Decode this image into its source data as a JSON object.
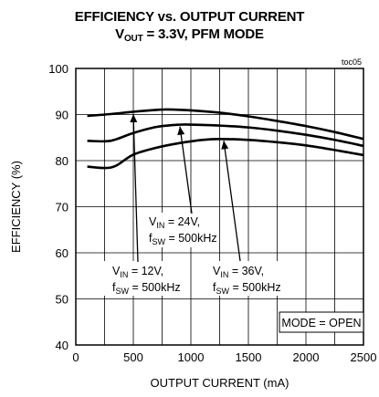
{
  "chart_data": {
    "type": "line",
    "title_line1": "EFFICIENCY vs. OUTPUT CURRENT",
    "title_line2_prefix": "V",
    "title_line2_sub": "OUT",
    "title_line2_suffix": " = 3.3V, PFM MODE",
    "corner_label": "toc05",
    "xlabel": "OUTPUT CURRENT (mA)",
    "ylabel": "EFFICIENCY (%)",
    "xlim": [
      0,
      2500
    ],
    "ylim": [
      40,
      100
    ],
    "x_ticks": [
      0,
      500,
      1000,
      1500,
      2000,
      2500
    ],
    "y_ticks": [
      40,
      50,
      60,
      70,
      80,
      90,
      100
    ],
    "x_grid_step": 250,
    "grid": true,
    "series": [
      {
        "name": "12V",
        "x": [
          100,
          300,
          500,
          700,
          800,
          1000,
          1250,
          1500,
          1750,
          2000,
          2250,
          2500
        ],
        "values": [
          89.7,
          90.1,
          90.6,
          91.0,
          91.1,
          90.9,
          90.4,
          89.6,
          88.6,
          87.5,
          86.2,
          84.7
        ]
      },
      {
        "name": "24V",
        "x": [
          100,
          300,
          500,
          700,
          900,
          1000,
          1250,
          1500,
          1750,
          2000,
          2250,
          2500
        ],
        "values": [
          84.3,
          84.3,
          86.0,
          87.3,
          87.8,
          87.8,
          87.6,
          87.2,
          86.5,
          85.6,
          84.5,
          83.2
        ]
      },
      {
        "name": "36V",
        "x": [
          100,
          250,
          350,
          500,
          700,
          900,
          1100,
          1250,
          1500,
          1750,
          2000,
          2250,
          2500
        ],
        "values": [
          78.7,
          78.4,
          78.9,
          81.3,
          82.8,
          83.8,
          84.5,
          84.7,
          84.5,
          84.0,
          83.3,
          82.3,
          81.2
        ]
      }
    ],
    "annotations": [
      {
        "series": "24V",
        "line1_prefix": "V",
        "line1_sub": "IN",
        "line1_suffix": " = 24V,",
        "line2_prefix": "f",
        "line2_sub": "SW",
        "line2_suffix": " = 500kHz"
      },
      {
        "series": "12V",
        "line1_prefix": "V",
        "line1_sub": "IN",
        "line1_suffix": " = 12V,",
        "line2_prefix": "f",
        "line2_sub": "SW",
        "line2_suffix": " = 500kHz"
      },
      {
        "series": "36V",
        "line1_prefix": "V",
        "line1_sub": "IN",
        "line1_suffix": " = 36V,",
        "line2_prefix": "f",
        "line2_sub": "SW",
        "line2_suffix": " = 500kHz"
      }
    ],
    "mode_box": "MODE = OPEN"
  }
}
